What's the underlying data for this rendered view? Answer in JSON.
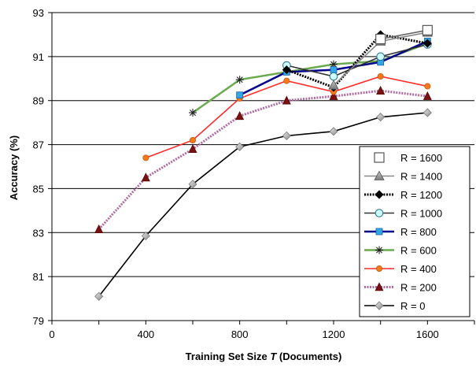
{
  "chart_data": {
    "type": "line",
    "title": "",
    "xlabel_prefix": "Training Set Size ",
    "xlabel_var": "T",
    "xlabel_suffix": " (Documents)",
    "ylabel": "Accuracy (%)",
    "xlim": [
      0,
      1800
    ],
    "ylim": [
      79,
      93
    ],
    "xticks": [
      0,
      400,
      800,
      1200,
      1600
    ],
    "yticks": [
      79,
      81,
      83,
      85,
      87,
      89,
      91,
      93
    ],
    "grid": "horizontal",
    "legend_position": "bottom-right",
    "series": [
      {
        "name": "R = 1600",
        "color": "#666666",
        "line_style": "solid",
        "marker": "open-square",
        "points": [
          [
            1400,
            91.8
          ],
          [
            1600,
            92.2
          ]
        ]
      },
      {
        "name": "R = 1400",
        "color": "#888888",
        "line_style": "solid",
        "marker": "gray-triangle",
        "points": [
          [
            1200,
            89.7
          ],
          [
            1400,
            91.7
          ],
          [
            1600,
            92.1
          ]
        ]
      },
      {
        "name": "R = 1200",
        "color": "#000000",
        "line_style": "dotted-thick",
        "marker": "black-diamond",
        "points": [
          [
            1000,
            90.4
          ],
          [
            1200,
            89.6
          ],
          [
            1400,
            92.0
          ],
          [
            1600,
            91.6
          ]
        ]
      },
      {
        "name": "R = 1000",
        "color": "#333333",
        "line_style": "solid",
        "marker": "cyan-circle",
        "points": [
          [
            1000,
            90.6
          ],
          [
            1200,
            90.1
          ],
          [
            1400,
            91.0
          ],
          [
            1600,
            91.55
          ]
        ]
      },
      {
        "name": "R = 800",
        "color": "#00008b",
        "line_style": "solid-thick",
        "marker": "blue-square",
        "points": [
          [
            800,
            89.25
          ],
          [
            1000,
            90.3
          ],
          [
            1200,
            90.4
          ],
          [
            1400,
            90.75
          ],
          [
            1600,
            91.7
          ]
        ]
      },
      {
        "name": "R = 600",
        "color": "#6aaa50",
        "line_style": "solid-thick",
        "marker": "star",
        "points": [
          [
            600,
            88.45
          ],
          [
            800,
            89.95
          ],
          [
            1200,
            90.65
          ],
          [
            1400,
            90.8
          ],
          [
            1600,
            91.6
          ]
        ]
      },
      {
        "name": "R = 400",
        "color": "#ff2a2a",
        "line_style": "solid",
        "marker": "orange-circle",
        "points": [
          [
            400,
            86.4
          ],
          [
            600,
            87.2
          ],
          [
            800,
            89.1
          ],
          [
            1000,
            89.9
          ],
          [
            1200,
            89.4
          ],
          [
            1400,
            90.1
          ],
          [
            1600,
            89.65
          ]
        ]
      },
      {
        "name": "R = 200",
        "color": "#b06aa0",
        "line_style": "dotted-thick",
        "marker": "maroon-triangle",
        "points": [
          [
            200,
            83.15
          ],
          [
            400,
            85.5
          ],
          [
            600,
            86.8
          ],
          [
            800,
            88.3
          ],
          [
            1000,
            89.0
          ],
          [
            1200,
            89.2
          ],
          [
            1400,
            89.45
          ],
          [
            1600,
            89.2
          ]
        ]
      },
      {
        "name": "R = 0",
        "color": "#000000",
        "line_style": "solid",
        "marker": "gray-diamond",
        "points": [
          [
            200,
            80.1
          ],
          [
            400,
            82.85
          ],
          [
            600,
            85.2
          ],
          [
            800,
            86.9
          ],
          [
            1000,
            87.4
          ],
          [
            1200,
            87.6
          ],
          [
            1400,
            88.25
          ],
          [
            1600,
            88.45
          ]
        ]
      }
    ]
  }
}
